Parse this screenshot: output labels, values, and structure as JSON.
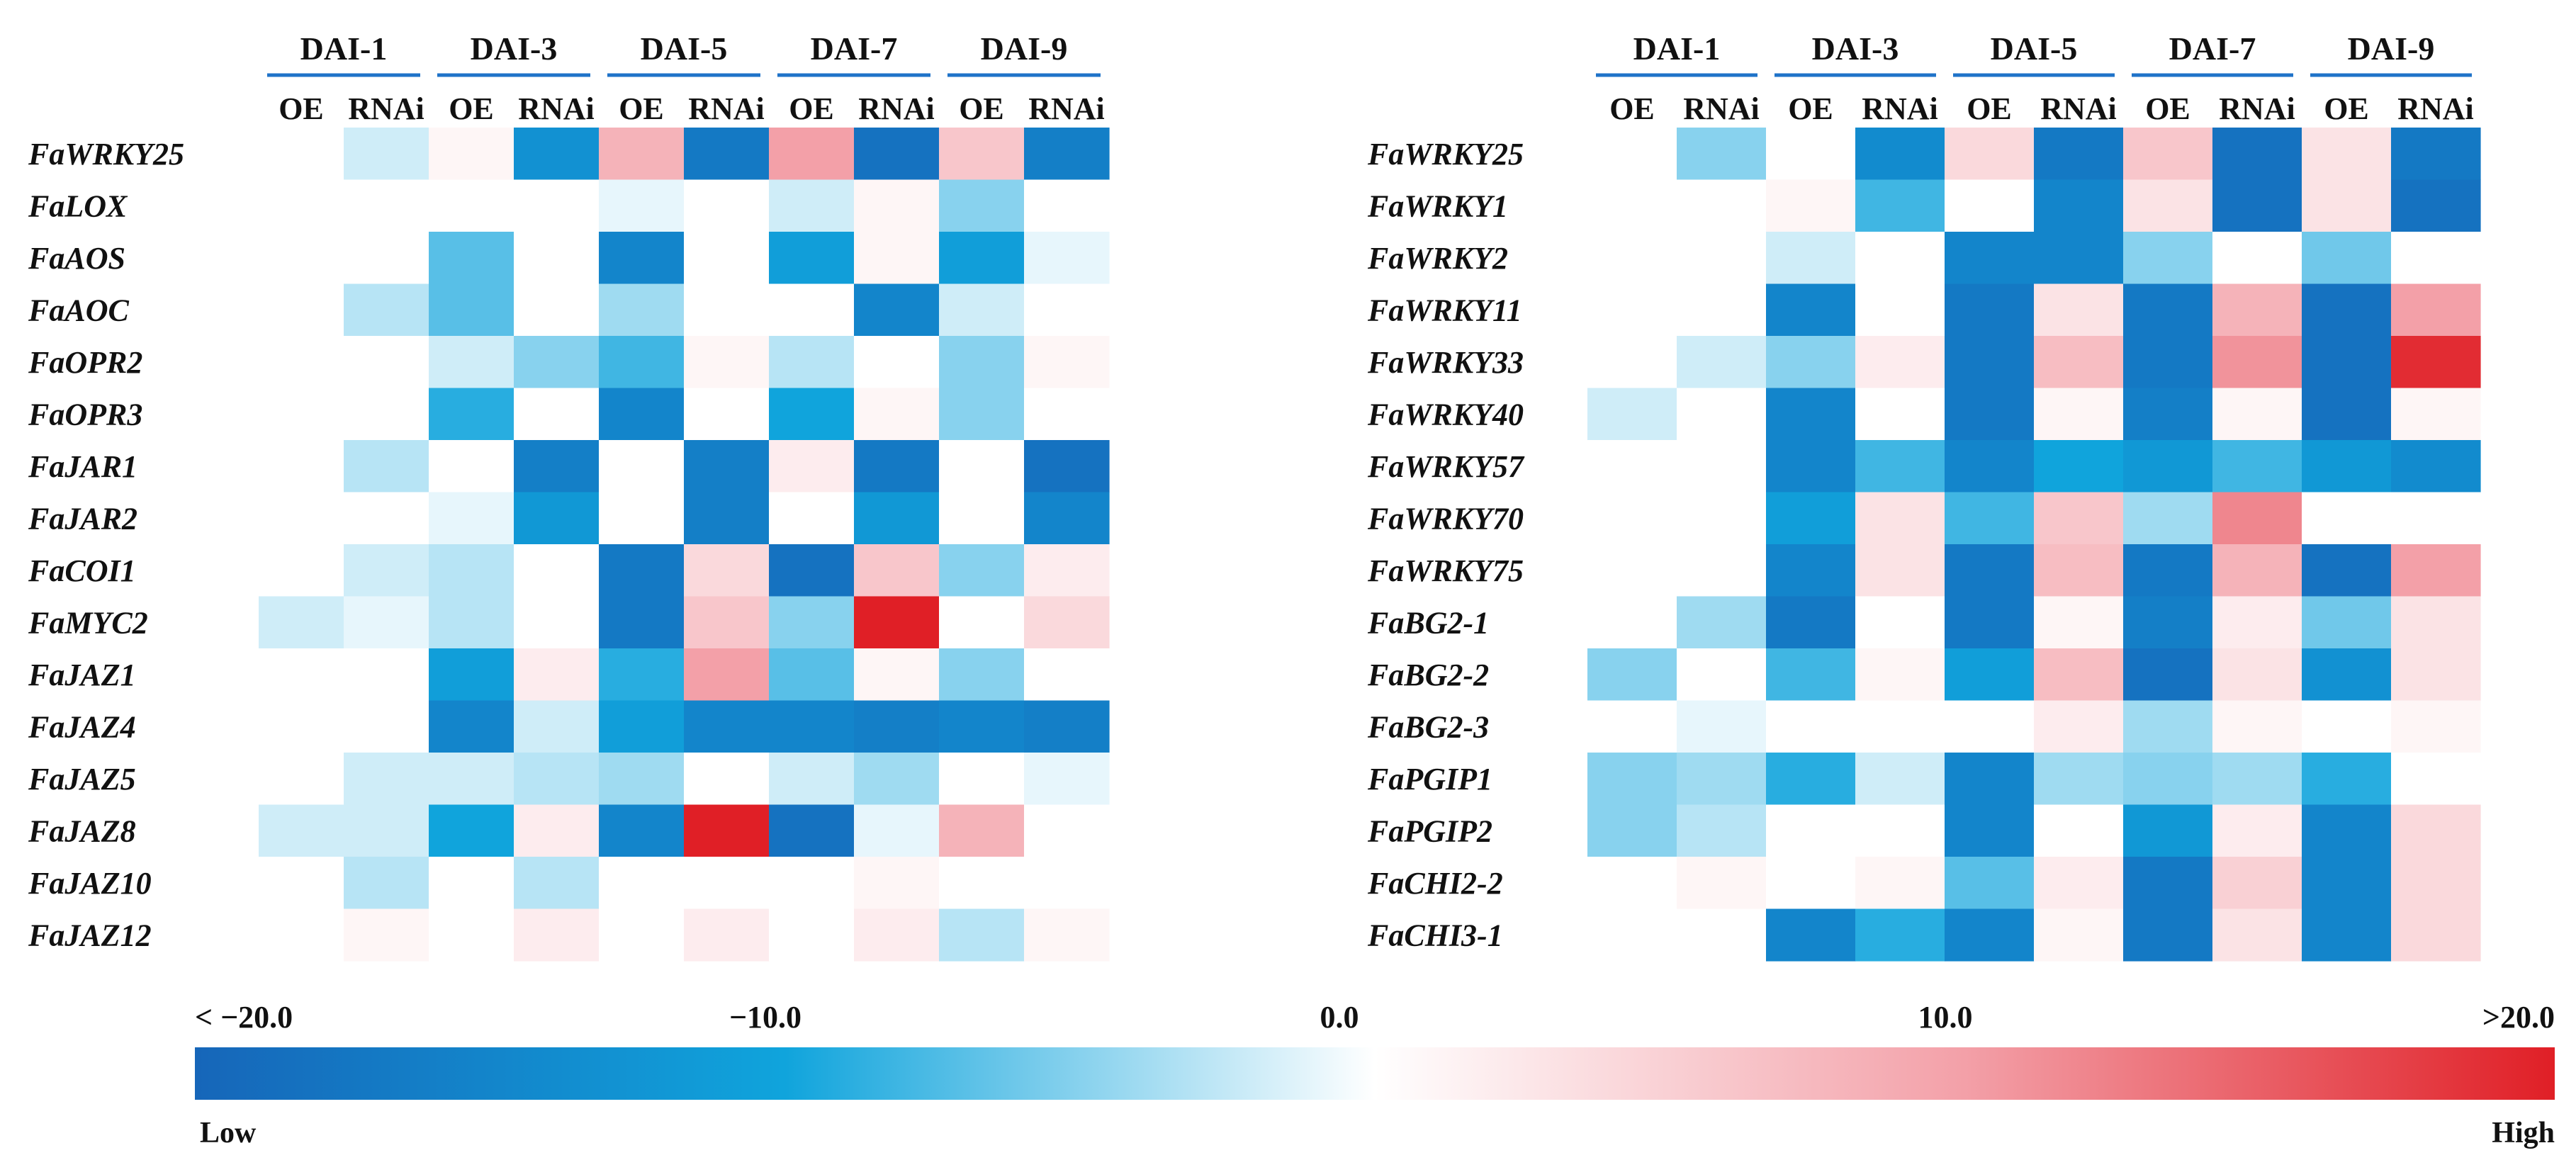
{
  "chart_data": [
    {
      "type": "heatmap",
      "panel": "left",
      "groups": [
        "DAI-1",
        "DAI-3",
        "DAI-5",
        "DAI-7",
        "DAI-9"
      ],
      "columns": [
        "OE",
        "RNAi",
        "OE",
        "RNAi",
        "OE",
        "RNAi",
        "OE",
        "RNAi",
        "OE",
        "RNAi"
      ],
      "rows": [
        "FaWRKY25",
        "FaLOX",
        "FaAOS",
        "FaAOC",
        "FaOPR2",
        "FaOPR3",
        "FaJAR1",
        "FaJAR2",
        "FaCOI1",
        "FaMYC2",
        "FaJAZ1",
        "FaJAZ4",
        "FaJAZ5",
        "FaJAZ8",
        "FaJAZ10",
        "FaJAZ12"
      ],
      "values": [
        [
          0,
          -2,
          1,
          -13,
          8,
          -17,
          10,
          -18,
          6,
          -16
        ],
        [
          0,
          0,
          0,
          0,
          -1,
          0,
          -2,
          1,
          -5,
          0
        ],
        [
          0,
          0,
          -7,
          0,
          -15,
          0,
          -11,
          1,
          -11,
          -1
        ],
        [
          0,
          -3,
          -7,
          0,
          -4,
          0,
          0,
          -15,
          -2,
          0
        ],
        [
          0,
          0,
          -2,
          -5,
          -8,
          1,
          -3,
          0,
          -5,
          1
        ],
        [
          0,
          0,
          -9,
          0,
          -15,
          0,
          -10,
          1,
          -5,
          0
        ],
        [
          0,
          -3,
          0,
          -16,
          0,
          -16,
          2,
          -17,
          0,
          -18
        ],
        [
          0,
          0,
          -1,
          -12,
          0,
          -16,
          0,
          -12,
          0,
          -15
        ],
        [
          0,
          -2,
          -3,
          0,
          -17,
          4,
          -18,
          6,
          -5,
          2
        ],
        [
          -2,
          -1,
          -3,
          0,
          -17,
          6,
          -5,
          20,
          0,
          4
        ],
        [
          0,
          0,
          -11,
          2,
          -9,
          10,
          -7,
          1,
          -5,
          0
        ],
        [
          0,
          0,
          -15,
          -2,
          -11,
          -15,
          -15,
          -16,
          -15,
          -16
        ],
        [
          0,
          -2,
          -2,
          -3,
          -4,
          0,
          -2,
          -4,
          0,
          -1
        ],
        [
          -2,
          -2,
          -10,
          2,
          -15,
          20,
          -18,
          -1,
          8,
          0
        ],
        [
          0,
          -3,
          0,
          -3,
          0,
          0,
          0,
          1,
          0,
          0
        ],
        [
          0,
          1,
          0,
          2,
          0,
          2,
          0,
          2,
          -3,
          1
        ]
      ],
      "colorscale": {
        "min": -20,
        "max": 20,
        "low_color": "#1666b9",
        "mid_low_color": "#10a4dc",
        "zero_color": "#ffffff",
        "high_color": "#e01f26"
      }
    },
    {
      "type": "heatmap",
      "panel": "right",
      "groups": [
        "DAI-1",
        "DAI-3",
        "DAI-5",
        "DAI-7",
        "DAI-9"
      ],
      "columns": [
        "OE",
        "RNAi",
        "OE",
        "RNAi",
        "OE",
        "RNAi",
        "OE",
        "RNAi",
        "OE",
        "RNAi"
      ],
      "rows": [
        "FaWRKY25",
        "FaWRKY1",
        "FaWRKY2",
        "FaWRKY11",
        "FaWRKY33",
        "FaWRKY40",
        "FaWRKY57",
        "FaWRKY70",
        "FaWRKY75",
        "FaBG2-1",
        "FaBG2-2",
        "FaBG2-3",
        "FaPGIP1",
        "FaPGIP2",
        "FaCHI2-2",
        "FaCHI3-1"
      ],
      "values": [
        [
          0,
          -5,
          0,
          -14,
          4,
          -17,
          6,
          -18,
          3,
          -17
        ],
        [
          0,
          0,
          1,
          -8,
          0,
          -15,
          3,
          -18,
          3,
          -18
        ],
        [
          0,
          0,
          -2,
          0,
          -15,
          -15,
          -5,
          0,
          -6,
          0
        ],
        [
          0,
          0,
          -15,
          0,
          -17,
          3,
          -17,
          8,
          -18,
          10
        ],
        [
          0,
          -2,
          -5,
          2,
          -17,
          7,
          -17,
          11,
          -18,
          19
        ],
        [
          -2,
          0,
          -15,
          0,
          -17,
          1,
          -16,
          1,
          -18,
          1
        ],
        [
          0,
          0,
          -15,
          -8,
          -15,
          -10,
          -12,
          -8,
          -12,
          -14
        ],
        [
          0,
          0,
          -11,
          3,
          -8,
          6,
          -4,
          12,
          0,
          0
        ],
        [
          0,
          0,
          -15,
          3,
          -17,
          7,
          -17,
          8,
          -18,
          10
        ],
        [
          0,
          -4,
          -17,
          0,
          -17,
          1,
          -16,
          2,
          -6,
          3
        ],
        [
          -5,
          0,
          -8,
          1,
          -11,
          7,
          -18,
          3,
          -13,
          3
        ],
        [
          0,
          -1,
          0,
          0,
          0,
          2,
          -4,
          1,
          0,
          1
        ],
        [
          -5,
          -4,
          -9,
          -2,
          -15,
          -4,
          -5,
          -4,
          -9,
          0
        ],
        [
          -5,
          -3,
          0,
          0,
          -15,
          0,
          -12,
          2,
          -15,
          4
        ],
        [
          0,
          1,
          0,
          1,
          -7,
          2,
          -17,
          5,
          -15,
          4
        ],
        [
          0,
          0,
          -15,
          -9,
          -15,
          1,
          -17,
          3,
          -15,
          4
        ]
      ],
      "colorscale": {
        "min": -20,
        "max": 20,
        "low_color": "#1666b9",
        "mid_low_color": "#10a4dc",
        "zero_color": "#ffffff",
        "high_color": "#e01f26"
      }
    },
    {
      "type": "colorbar",
      "ticks": [
        {
          "value": -20,
          "label": "< −20.0"
        },
        {
          "value": -10,
          "label": "−10.0"
        },
        {
          "value": 0,
          "label": "0.0"
        },
        {
          "value": 10,
          "label": "10.0"
        },
        {
          "value": 20,
          "label": ">20.0"
        }
      ],
      "low_label": "Low",
      "high_label": "High"
    }
  ]
}
